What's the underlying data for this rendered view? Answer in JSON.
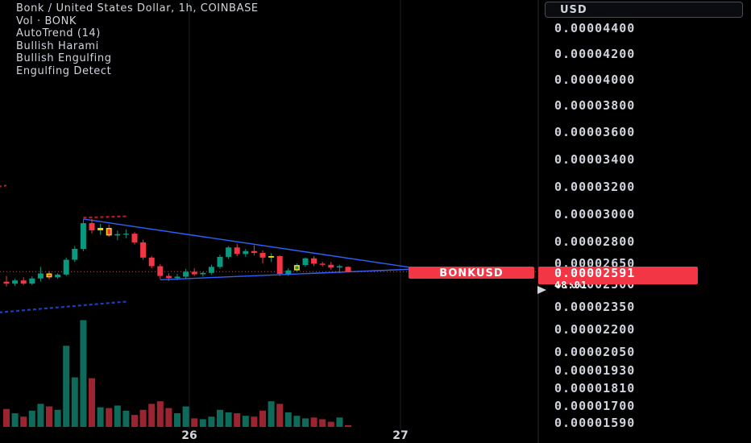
{
  "legend": {
    "title": "Bonk / United States Dollar, 1h, COINBASE",
    "volume": "Vol · BONK",
    "autotrend": "AutoTrend (14)",
    "harami": "Bullish Harami",
    "engulfing": "Bullish Engulfing",
    "engulfing_detect": "Engulfing Detect"
  },
  "currency": "USD",
  "price_tag": {
    "symbol": "BONKUSD",
    "price": "0.00002591",
    "countdown": "48:01",
    "color": "#f23645"
  },
  "colors": {
    "up": "#089981",
    "down": "#f23645",
    "trend": "#2962ff",
    "channel": "#b71c1c",
    "highlight": "#ffd600"
  },
  "chart_data": {
    "type": "candlestick",
    "yticks": [
      "0.00004400",
      "0.00004200",
      "0.00004000",
      "0.00003800",
      "0.00003600",
      "0.00003400",
      "0.00003200",
      "0.00003000",
      "0.00002800",
      "0.00002650",
      "0.00002500",
      "0.00002350",
      "0.00002200",
      "0.00002050",
      "0.00001930",
      "0.00001810",
      "0.00001700",
      "0.00001590"
    ],
    "xticks": [
      "26",
      "27"
    ],
    "candles": [
      {
        "o": 2.519e-05,
        "h": 2.56e-05,
        "l": 2.486e-05,
        "c": 2.505e-05,
        "v": 21
      },
      {
        "o": 2.505e-05,
        "h": 2.54e-05,
        "l": 2.49e-05,
        "c": 2.528e-05,
        "v": 16
      },
      {
        "o": 2.528e-05,
        "h": 2.55e-05,
        "l": 2.497e-05,
        "c": 2.505e-05,
        "v": 12
      },
      {
        "o": 2.505e-05,
        "h": 2.557e-05,
        "l": 2.495e-05,
        "c": 2.542e-05,
        "v": 19
      },
      {
        "o": 2.542e-05,
        "h": 2.625e-05,
        "l": 2.52e-05,
        "c": 2.578e-05,
        "v": 27
      },
      {
        "o": 2.578e-05,
        "h": 2.595e-05,
        "l": 2.535e-05,
        "c": 2.55e-05,
        "v": 24
      },
      {
        "o": 2.55e-05,
        "h": 2.58e-05,
        "l": 2.54e-05,
        "c": 2.57e-05,
        "v": 20
      },
      {
        "o": 2.57e-05,
        "h": 2.69e-05,
        "l": 2.56e-05,
        "c": 2.675e-05,
        "v": 95
      },
      {
        "o": 2.675e-05,
        "h": 2.77e-05,
        "l": 2.66e-05,
        "c": 2.75e-05,
        "v": 58
      },
      {
        "o": 2.75e-05,
        "h": 2.962e-05,
        "l": 2.735e-05,
        "c": 2.935e-05,
        "v": 125
      },
      {
        "o": 2.935e-05,
        "h": 2.965e-05,
        "l": 2.86e-05,
        "c": 2.883e-05,
        "v": 57
      },
      {
        "o": 2.883e-05,
        "h": 2.93e-05,
        "l": 2.85e-05,
        "c": 2.9e-05,
        "v": 23
      },
      {
        "o": 2.9e-05,
        "h": 2.925e-05,
        "l": 2.835e-05,
        "c": 2.845e-05,
        "v": 22
      },
      {
        "o": 2.845e-05,
        "h": 2.882e-05,
        "l": 2.81e-05,
        "c": 2.855e-05,
        "v": 25
      },
      {
        "o": 2.855e-05,
        "h": 2.89e-05,
        "l": 2.825e-05,
        "c": 2.858e-05,
        "v": 19
      },
      {
        "o": 2.858e-05,
        "h": 2.87e-05,
        "l": 2.78e-05,
        "c": 2.795e-05,
        "v": 14
      },
      {
        "o": 2.795e-05,
        "h": 2.815e-05,
        "l": 2.675e-05,
        "c": 2.69e-05,
        "v": 20
      },
      {
        "o": 2.69e-05,
        "h": 2.7e-05,
        "l": 2.615e-05,
        "c": 2.63e-05,
        "v": 27
      },
      {
        "o": 2.63e-05,
        "h": 2.645e-05,
        "l": 2.538e-05,
        "c": 2.56e-05,
        "v": 30
      },
      {
        "o": 2.56e-05,
        "h": 2.58e-05,
        "l": 2.525e-05,
        "c": 2.545e-05,
        "v": 22
      },
      {
        "o": 2.545e-05,
        "h": 2.575e-05,
        "l": 2.53e-05,
        "c": 2.555e-05,
        "v": 16
      },
      {
        "o": 2.555e-05,
        "h": 2.61e-05,
        "l": 2.54e-05,
        "c": 2.59e-05,
        "v": 24
      },
      {
        "o": 2.59e-05,
        "h": 2.615e-05,
        "l": 2.56e-05,
        "c": 2.572e-05,
        "v": 10
      },
      {
        "o": 2.572e-05,
        "h": 2.59e-05,
        "l": 2.555e-05,
        "c": 2.582e-05,
        "v": 9
      },
      {
        "o": 2.582e-05,
        "h": 2.64e-05,
        "l": 2.57e-05,
        "c": 2.625e-05,
        "v": 12
      },
      {
        "o": 2.625e-05,
        "h": 2.71e-05,
        "l": 2.612e-05,
        "c": 2.695e-05,
        "v": 20
      },
      {
        "o": 2.695e-05,
        "h": 2.77e-05,
        "l": 2.68e-05,
        "c": 2.76e-05,
        "v": 17
      },
      {
        "o": 2.76e-05,
        "h": 2.785e-05,
        "l": 2.7e-05,
        "c": 2.715e-05,
        "v": 16
      },
      {
        "o": 2.715e-05,
        "h": 2.75e-05,
        "l": 2.695e-05,
        "c": 2.735e-05,
        "v": 13
      },
      {
        "o": 2.735e-05,
        "h": 2.775e-05,
        "l": 2.705e-05,
        "c": 2.722e-05,
        "v": 12
      },
      {
        "o": 2.722e-05,
        "h": 2.74e-05,
        "l": 2.65e-05,
        "c": 2.69e-05,
        "v": 19
      },
      {
        "o": 2.69e-05,
        "h": 2.72e-05,
        "l": 2.66e-05,
        "c": 2.7e-05,
        "v": 30
      },
      {
        "o": 2.7e-05,
        "h": 2.705e-05,
        "l": 2.56e-05,
        "c": 2.575e-05,
        "v": 27
      },
      {
        "o": 2.575e-05,
        "h": 2.615e-05,
        "l": 2.56e-05,
        "c": 2.6e-05,
        "v": 17
      },
      {
        "o": 2.6e-05,
        "h": 2.65e-05,
        "l": 2.59e-05,
        "c": 2.638e-05,
        "v": 13
      },
      {
        "o": 2.638e-05,
        "h": 2.69e-05,
        "l": 2.625e-05,
        "c": 2.685e-05,
        "v": 10
      },
      {
        "o": 2.685e-05,
        "h": 2.7e-05,
        "l": 2.63e-05,
        "c": 2.648e-05,
        "v": 11
      },
      {
        "o": 2.648e-05,
        "h": 2.66e-05,
        "l": 2.628e-05,
        "c": 2.64e-05,
        "v": 9
      },
      {
        "o": 2.64e-05,
        "h": 2.66e-05,
        "l": 2.605e-05,
        "c": 2.62e-05,
        "v": 6
      },
      {
        "o": 2.62e-05,
        "h": 2.64e-05,
        "l": 2.582e-05,
        "c": 2.63e-05,
        "v": 11
      },
      {
        "o": 2.625e-05,
        "h": 2.63e-05,
        "l": 2.588e-05,
        "c": 2.591e-05,
        "v": 2
      }
    ],
    "highlighted_candles": [
      5,
      11,
      12,
      31,
      34
    ],
    "trendlines": [
      {
        "from": {
          "candle": 9,
          "price": 2.965e-05
        },
        "to": {
          "candle": 48,
          "price": 2.615e-05
        }
      },
      {
        "from": {
          "candle": 18,
          "price": 2.533e-05
        },
        "to": {
          "candle": 48,
          "price": 2.61e-05
        }
      }
    ],
    "channel_lines": [
      {
        "from": {
          "candle": -14,
          "price": 3.08e-05
        },
        "to": {
          "candle": 0,
          "price": 3.21e-05
        }
      },
      {
        "from": {
          "candle": 9,
          "price": 2.975e-05
        },
        "to": {
          "candle": 14,
          "price": 2.985e-05
        }
      },
      {
        "from": {
          "candle": -14,
          "price": 2.25e-05
        },
        "to": {
          "candle": 14,
          "price": 2.385e-05
        }
      }
    ],
    "last_price": 2.591e-05
  }
}
